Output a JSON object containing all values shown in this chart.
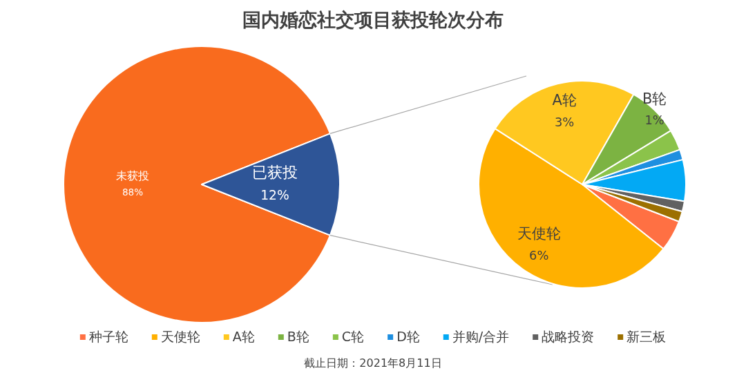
{
  "chart_data": [
    {
      "type": "pie",
      "title": "国内婚恋社交项目获投轮次分布",
      "categories": [
        "未获投",
        "已获投"
      ],
      "values": [
        88,
        12
      ],
      "colors": [
        "#f96b1e",
        "#2e5597"
      ],
      "value_labels": [
        "88%",
        "12%"
      ],
      "annotations": [
        "截止日期：2021年8月11日"
      ]
    },
    {
      "type": "pie",
      "categories": [
        "种子轮",
        "天使轮",
        "A轮",
        "B轮",
        "C轮",
        "D轮",
        "并购/合并",
        "战略投资",
        "新三板"
      ],
      "values": [
        0.6,
        6,
        3,
        1,
        0.4,
        0.2,
        0.8,
        0.2,
        0.2
      ],
      "colors": [
        "#ff7043",
        "#ffb000",
        "#ffc820",
        "#7cb342",
        "#8bc34a",
        "#1e8fe0",
        "#03a9f4",
        "#616161",
        "#9c7000"
      ],
      "value_labels": [
        null,
        "6%",
        "3%",
        "1%",
        null,
        null,
        null,
        null,
        null
      ],
      "legend": "bottom"
    }
  ]
}
